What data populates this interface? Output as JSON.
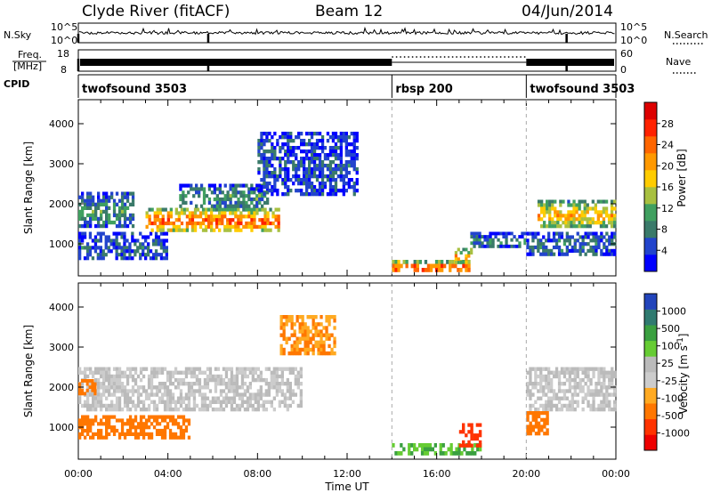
{
  "header": {
    "station": "Clyde River (fitACF)",
    "beam": "Beam 12",
    "date": "04/Jun/2014"
  },
  "strips": {
    "nsky_label": "N.Sky",
    "nsky_ticks": [
      "10^5",
      "10^0"
    ],
    "nsearch_label": "N.Search",
    "freq_label_1": "Freq.",
    "freq_label_2": "[MHz]",
    "freq_ticks": [
      "18",
      "8"
    ],
    "nave_label": "Nave",
    "nave_ticks": [
      "60",
      "0"
    ],
    "cpid_label": "CPID",
    "cpid_segments": [
      {
        "name": "twofsound 3503",
        "start_h": 0,
        "end_h": 14.0
      },
      {
        "name": "rbsp 200",
        "start_h": 14.0,
        "end_h": 20.0
      },
      {
        "name": "twofsound 3503",
        "start_h": 20.0,
        "end_h": 24.0
      }
    ]
  },
  "colors": {
    "power": [
      "#0000ff",
      "#2244cc",
      "#3a7a6a",
      "#40a060",
      "#a8c040",
      "#ffcc00",
      "#ff9900",
      "#ff6600",
      "#ff2200",
      "#dd0000"
    ],
    "velocity": [
      "#2244bb",
      "#2f7a70",
      "#3aa040",
      "#66cc33",
      "#bbbbbb",
      "#cccccc",
      "#ffaa22",
      "#ff7700",
      "#ff3300",
      "#ee0000"
    ]
  },
  "chart_data": [
    {
      "type": "heatmap",
      "title": "",
      "xlabel": "Time UT",
      "ylabel": "Slant Range [km]",
      "x_ticks": [
        "00:00",
        "04:00",
        "08:00",
        "12:00",
        "16:00",
        "20:00",
        "00:00"
      ],
      "xlim": [
        0,
        24
      ],
      "ylim": [
        200,
        4600
      ],
      "y_ticks": [
        1000,
        2000,
        3000,
        4000
      ],
      "colorbar": {
        "label": "Power [dB]",
        "ticks": [
          4,
          8,
          12,
          16,
          20,
          24,
          28
        ],
        "range": [
          0,
          32
        ]
      },
      "regions": [
        {
          "t": [
            0.0,
            2.5
          ],
          "r": [
            1400,
            2300
          ],
          "value": 10
        },
        {
          "t": [
            0.0,
            4.0
          ],
          "r": [
            600,
            1300
          ],
          "value": 6
        },
        {
          "t": [
            3.0,
            9.0
          ],
          "r": [
            1300,
            1900
          ],
          "value": 26
        },
        {
          "t": [
            4.5,
            8.5
          ],
          "r": [
            1900,
            2500
          ],
          "value": 10
        },
        {
          "t": [
            8.0,
            12.5
          ],
          "r": [
            2200,
            3800
          ],
          "value": 6
        },
        {
          "t": [
            14.0,
            17.5
          ],
          "r": [
            300,
            600
          ],
          "value": 28
        },
        {
          "t": [
            16.8,
            17.6
          ],
          "r": [
            500,
            900
          ],
          "value": 24
        },
        {
          "t": [
            17.5,
            20.0
          ],
          "r": [
            900,
            1300
          ],
          "value": 8
        },
        {
          "t": [
            20.5,
            24.0
          ],
          "r": [
            1400,
            2100
          ],
          "value": 20
        },
        {
          "t": [
            20.0,
            24.0
          ],
          "r": [
            700,
            1300
          ],
          "value": 8
        }
      ]
    },
    {
      "type": "heatmap",
      "title": "",
      "xlabel": "Time UT",
      "ylabel": "Slant Range [km]",
      "x_ticks": [
        "00:00",
        "04:00",
        "08:00",
        "12:00",
        "16:00",
        "20:00",
        "00:00"
      ],
      "xlim": [
        0,
        24
      ],
      "ylim": [
        200,
        4600
      ],
      "y_ticks": [
        1000,
        2000,
        3000,
        4000
      ],
      "colorbar": {
        "label": "Velocity [m s^-1]",
        "ticks": [
          "1000",
          "500",
          "100",
          "25",
          "-25",
          "-100",
          "-500",
          "-1000"
        ]
      },
      "regions": [
        {
          "t": [
            0.0,
            10.0
          ],
          "r": [
            1400,
            2500
          ],
          "value": 0
        },
        {
          "t": [
            0.0,
            5.0
          ],
          "r": [
            700,
            1300
          ],
          "value": -300
        },
        {
          "t": [
            0.0,
            0.8
          ],
          "r": [
            1800,
            2200
          ],
          "value": -300
        },
        {
          "t": [
            9.0,
            11.5
          ],
          "r": [
            2800,
            3800
          ],
          "value": -100
        },
        {
          "t": [
            14.0,
            18.0
          ],
          "r": [
            300,
            600
          ],
          "value": 100
        },
        {
          "t": [
            17.0,
            18.0
          ],
          "r": [
            500,
            1100
          ],
          "value": -700
        },
        {
          "t": [
            20.0,
            24.0
          ],
          "r": [
            1400,
            2500
          ],
          "value": 0
        },
        {
          "t": [
            20.0,
            21.0
          ],
          "r": [
            800,
            1400
          ],
          "value": -200
        }
      ]
    }
  ]
}
